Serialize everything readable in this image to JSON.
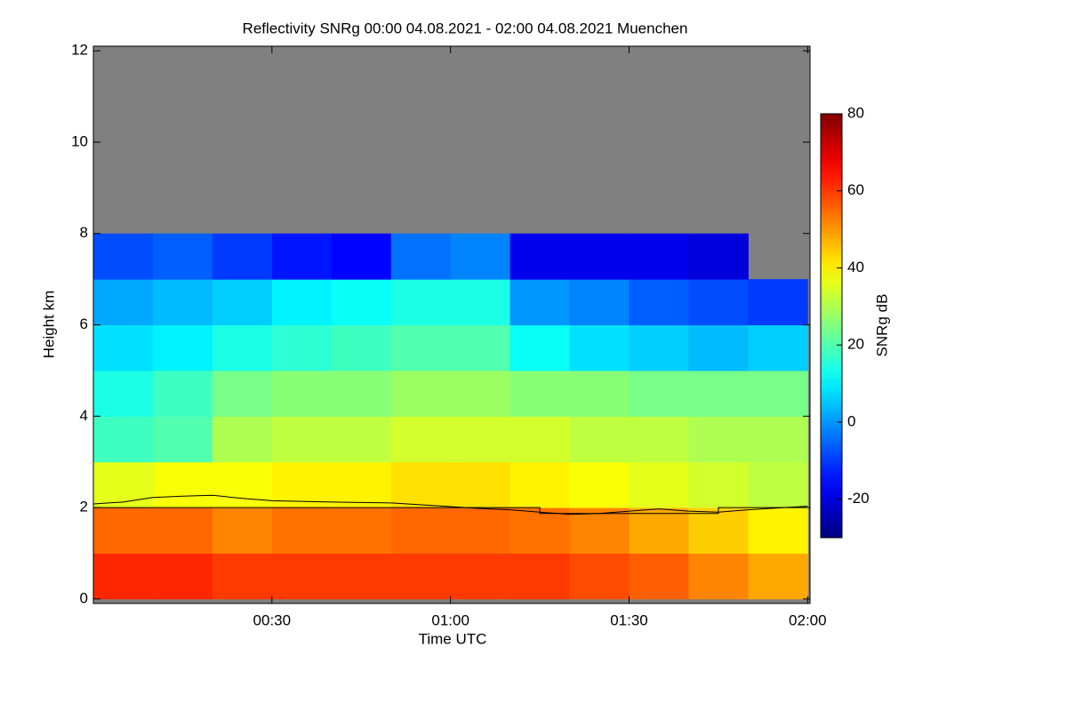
{
  "chart_data": {
    "type": "heatmap",
    "title": "Reflectivity SNRg   00:00 04.08.2021 - 02:00 04.08.2021 Muenchen",
    "x_label": "Time UTC",
    "y_label": "Height km",
    "colorbar_label": "SNRg dB",
    "x_edges": [
      0,
      10,
      20,
      30,
      40,
      50,
      60,
      70,
      80,
      90,
      100,
      110,
      120
    ],
    "y_edges": [
      0,
      1,
      2,
      3,
      4,
      5,
      6,
      7,
      8
    ],
    "z": [
      [
        62,
        62,
        60,
        60,
        60,
        60,
        60,
        60,
        58,
        56,
        52,
        48
      ],
      [
        55,
        55,
        52,
        54,
        54,
        55,
        55,
        54,
        52,
        48,
        44,
        40
      ],
      [
        36,
        38,
        38,
        40,
        40,
        42,
        42,
        40,
        38,
        36,
        34,
        32
      ],
      [
        18,
        20,
        30,
        32,
        32,
        34,
        34,
        34,
        32,
        32,
        30,
        30
      ],
      [
        14,
        18,
        24,
        26,
        26,
        28,
        28,
        26,
        26,
        24,
        24,
        24
      ],
      [
        8,
        10,
        14,
        16,
        18,
        20,
        20,
        12,
        8,
        6,
        4,
        6
      ],
      [
        2,
        4,
        6,
        10,
        12,
        14,
        14,
        0,
        -2,
        -6,
        -8,
        -10
      ],
      [
        -8,
        -6,
        -10,
        -14,
        -16,
        -4,
        -2,
        -18,
        -18,
        -18,
        -20,
        null
      ]
    ],
    "no_data_color": "#808080",
    "series": [
      {
        "color": "#000000",
        "x": [
          0,
          5,
          10,
          15,
          20,
          25,
          30,
          40,
          50,
          60,
          65,
          70,
          75,
          80,
          85,
          90,
          95,
          100,
          105,
          110,
          120
        ],
        "values": [
          2.08,
          2.12,
          2.22,
          2.25,
          2.27,
          2.2,
          2.15,
          2.12,
          2.1,
          2.02,
          1.98,
          1.95,
          1.9,
          1.85,
          1.87,
          1.92,
          1.97,
          1.92,
          1.9,
          1.95,
          2.03
        ]
      },
      {
        "color": "#000000",
        "x": [
          0,
          75,
          75,
          105,
          105,
          120
        ],
        "values": [
          2.0,
          2.0,
          1.87,
          1.87,
          2.0,
          2.0
        ]
      }
    ],
    "xlim": [
      0,
      120.4
    ],
    "ylim": [
      -0.1,
      12.1
    ],
    "xticks": [
      {
        "value": 30,
        "label": "00:30"
      },
      {
        "value": 60,
        "label": "01:00"
      },
      {
        "value": 90,
        "label": "01:30"
      },
      {
        "value": 120,
        "label": "02:00"
      }
    ],
    "yticks": [
      0,
      2,
      4,
      6,
      8,
      10,
      12
    ],
    "clim": [
      -30,
      80
    ],
    "cticks": [
      -20,
      0,
      20,
      40,
      60,
      80
    ],
    "colormap": "jet"
  }
}
